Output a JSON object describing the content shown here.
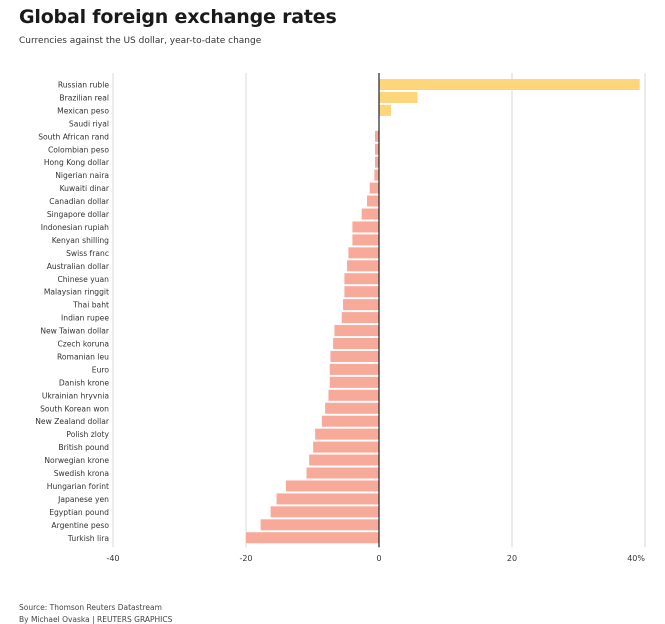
{
  "title": "Global foreign exchange rates",
  "subtitle": "Currencies against the US dollar, year-to-date change",
  "footer": {
    "source": "Source: Thomson Reuters Datastream",
    "byline": "By Michael Ovaska | REUTERS GRAPHICS"
  },
  "colors": {
    "positive": "#fdd57a",
    "negative": "#f7a99a",
    "grid": "#d9d9d9",
    "zero": "#222222"
  },
  "chart_data": {
    "type": "bar",
    "orientation": "horizontal",
    "title": "Global foreign exchange rates",
    "subtitle": "Currencies against the US dollar, year-to-date change",
    "xlim": [
      -40,
      40
    ],
    "xticks": [
      -40,
      -20,
      0,
      20,
      40
    ],
    "xtick_labels": [
      "-40",
      "-20",
      "0",
      "20",
      "40%"
    ],
    "grid": true,
    "categories": [
      "Russian ruble",
      "Brazilian real",
      "Mexican peso",
      "Saudi riyal",
      "South African rand",
      "Colombian peso",
      "Hong Kong dollar",
      "Nigerian naira",
      "Kuwaiti dinar",
      "Canadian dollar",
      "Singapore dollar",
      "Indonesian rupiah",
      "Kenyan shilling",
      "Swiss franc",
      "Australian dollar",
      "Chinese yuan",
      "Malaysian ringgit",
      "Thai baht",
      "Indian rupee",
      "New Taiwan dollar",
      "Czech koruna",
      "Romanian leu",
      "Euro",
      "Danish krone",
      "Ukrainian hryvnia",
      "South Korean won",
      "New Zealand dollar",
      "Polish zloty",
      "British pound",
      "Norwegian krone",
      "Swedish krona",
      "Hungarian forint",
      "Japanese yen",
      "Egyptian pound",
      "Argentine peso",
      "Turkish lira"
    ],
    "values": [
      39.2,
      5.8,
      1.8,
      0.0,
      -0.6,
      -0.6,
      -0.6,
      -0.7,
      -1.4,
      -1.8,
      -2.6,
      -4.0,
      -4.0,
      -4.6,
      -4.8,
      -5.2,
      -5.2,
      -5.4,
      -5.6,
      -6.7,
      -6.9,
      -7.3,
      -7.4,
      -7.4,
      -7.6,
      -8.1,
      -8.6,
      -9.6,
      -9.9,
      -10.5,
      -10.9,
      -14.0,
      -15.4,
      -16.3,
      -17.8,
      -20.0
    ]
  }
}
